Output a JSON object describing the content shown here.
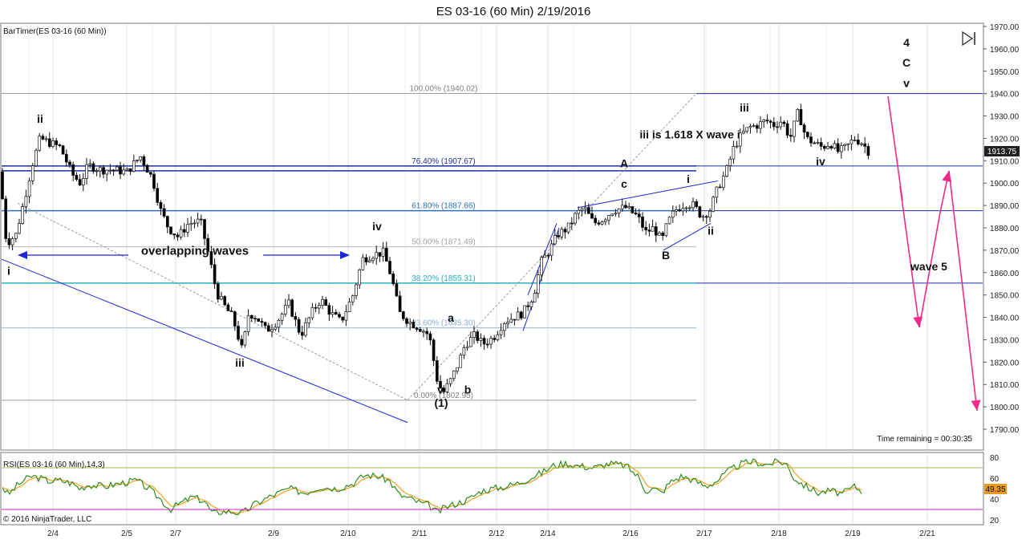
{
  "window": {
    "title": "ES 03-16 (60 Min)  2/19/2016",
    "indicator_label": "BarTimer(ES 03-16 (60 Min))",
    "rsi_label": "RSI(ES 03-16 (60 Min),14,3)",
    "copyright": "© 2016 NinjaTrader, LLC",
    "time_remaining": "Time remaining = 00:30:35"
  },
  "chart_data": {
    "type": "candlestick",
    "title": "ES 03-16 (60 Min)  2/19/2016",
    "xlabel": "",
    "ylabel": "",
    "ylim": [
      1782,
      1972
    ],
    "price_ticks": [
      "1970.00",
      "1960.00",
      "1950.00",
      "1940.00",
      "1930.00",
      "1920.00",
      "1910.00",
      "1900.00",
      "1890.00",
      "1880.00",
      "1870.00",
      "1860.00",
      "1850.00",
      "1840.00",
      "1830.00",
      "1820.00",
      "1810.00",
      "1800.00",
      "1790.00"
    ],
    "x_ticks": [
      "2/4",
      "2/5",
      "2/7",
      "2/9",
      "2/10",
      "2/11",
      "2/12",
      "2/14",
      "2/16",
      "2/17",
      "2/18",
      "2/19",
      "2/21"
    ],
    "last_price": "1913.75",
    "price_path": [
      [
        0,
        1905
      ],
      [
        8,
        1873
      ],
      [
        20,
        1877
      ],
      [
        30,
        1892
      ],
      [
        40,
        1908
      ],
      [
        50,
        1920
      ],
      [
        62,
        1918
      ],
      [
        75,
        1916
      ],
      [
        90,
        1904
      ],
      [
        100,
        1900
      ],
      [
        110,
        1908
      ],
      [
        125,
        1906
      ],
      [
        140,
        1906
      ],
      [
        158,
        1905
      ],
      [
        175,
        1912
      ],
      [
        190,
        1902
      ],
      [
        200,
        1888
      ],
      [
        210,
        1880
      ],
      [
        222,
        1876
      ],
      [
        235,
        1882
      ],
      [
        250,
        1883
      ],
      [
        262,
        1865
      ],
      [
        270,
        1851
      ],
      [
        280,
        1845
      ],
      [
        290,
        1840
      ],
      [
        302,
        1825
      ],
      [
        310,
        1842
      ],
      [
        320,
        1840
      ],
      [
        332,
        1834
      ],
      [
        345,
        1838
      ],
      [
        360,
        1846
      ],
      [
        375,
        1832
      ],
      [
        390,
        1843
      ],
      [
        400,
        1848
      ],
      [
        412,
        1842
      ],
      [
        425,
        1838
      ],
      [
        440,
        1850
      ],
      [
        452,
        1866
      ],
      [
        465,
        1868
      ],
      [
        478,
        1869
      ],
      [
        488,
        1858
      ],
      [
        498,
        1842
      ],
      [
        510,
        1838
      ],
      [
        525,
        1835
      ],
      [
        535,
        1832
      ],
      [
        545,
        1812
      ],
      [
        552,
        1806
      ],
      [
        562,
        1812
      ],
      [
        572,
        1820
      ],
      [
        580,
        1828
      ],
      [
        592,
        1832
      ],
      [
        602,
        1828
      ],
      [
        615,
        1831
      ],
      [
        628,
        1838
      ],
      [
        640,
        1840
      ],
      [
        652,
        1842
      ],
      [
        665,
        1850
      ],
      [
        675,
        1865
      ],
      [
        685,
        1870
      ],
      [
        695,
        1877
      ],
      [
        708,
        1880
      ],
      [
        718,
        1886
      ],
      [
        728,
        1889
      ],
      [
        740,
        1882
      ],
      [
        752,
        1884
      ],
      [
        765,
        1888
      ],
      [
        780,
        1889
      ],
      [
        795,
        1885
      ],
      [
        805,
        1878
      ],
      [
        815,
        1880
      ],
      [
        825,
        1874
      ],
      [
        832,
        1882
      ],
      [
        842,
        1888
      ],
      [
        855,
        1891
      ],
      [
        865,
        1890
      ],
      [
        875,
        1885
      ],
      [
        885,
        1888
      ],
      [
        895,
        1898
      ],
      [
        905,
        1905
      ],
      [
        915,
        1916
      ],
      [
        925,
        1922
      ],
      [
        935,
        1925
      ],
      [
        945,
        1926
      ],
      [
        955,
        1928
      ],
      [
        965,
        1926
      ],
      [
        975,
        1928
      ],
      [
        985,
        1920
      ],
      [
        995,
        1932
      ],
      [
        1005,
        1920
      ],
      [
        1015,
        1918
      ],
      [
        1025,
        1916
      ],
      [
        1035,
        1918
      ],
      [
        1045,
        1914
      ],
      [
        1055,
        1916
      ],
      [
        1065,
        1920
      ],
      [
        1075,
        1918
      ],
      [
        1083,
        1914
      ]
    ],
    "rsi": {
      "ylim": [
        17,
        82
      ],
      "ticks": [
        80,
        60,
        40,
        20
      ],
      "upper_level": 70,
      "lower_level": 30,
      "last_value": "49.35",
      "path": [
        [
          0,
          55
        ],
        [
          10,
          44
        ],
        [
          20,
          52
        ],
        [
          30,
          58
        ],
        [
          40,
          62
        ],
        [
          50,
          60
        ],
        [
          62,
          57
        ],
        [
          75,
          58
        ],
        [
          90,
          55
        ],
        [
          100,
          50
        ],
        [
          110,
          54
        ],
        [
          130,
          52
        ],
        [
          150,
          55
        ],
        [
          170,
          58
        ],
        [
          185,
          50
        ],
        [
          200,
          40
        ],
        [
          212,
          30
        ],
        [
          225,
          36
        ],
        [
          240,
          42
        ],
        [
          255,
          38
        ],
        [
          265,
          26
        ],
        [
          275,
          28
        ],
        [
          290,
          28
        ],
        [
          302,
          26
        ],
        [
          315,
          34
        ],
        [
          330,
          40
        ],
        [
          345,
          45
        ],
        [
          360,
          50
        ],
        [
          380,
          46
        ],
        [
          400,
          52
        ],
        [
          420,
          50
        ],
        [
          440,
          55
        ],
        [
          455,
          63
        ],
        [
          470,
          62
        ],
        [
          485,
          58
        ],
        [
          498,
          44
        ],
        [
          512,
          40
        ],
        [
          525,
          36
        ],
        [
          535,
          34
        ],
        [
          545,
          27
        ],
        [
          555,
          32
        ],
        [
          570,
          36
        ],
        [
          585,
          40
        ],
        [
          600,
          48
        ],
        [
          615,
          50
        ],
        [
          630,
          52
        ],
        [
          645,
          55
        ],
        [
          660,
          60
        ],
        [
          675,
          65
        ],
        [
          690,
          72
        ],
        [
          705,
          74
        ],
        [
          720,
          72
        ],
        [
          740,
          70
        ],
        [
          760,
          74
        ],
        [
          780,
          72
        ],
        [
          795,
          62
        ],
        [
          805,
          48
        ],
        [
          815,
          50
        ],
        [
          825,
          46
        ],
        [
          835,
          56
        ],
        [
          850,
          62
        ],
        [
          865,
          58
        ],
        [
          880,
          52
        ],
        [
          895,
          58
        ],
        [
          910,
          68
        ],
        [
          925,
          74
        ],
        [
          940,
          76
        ],
        [
          955,
          73
        ],
        [
          970,
          76
        ],
        [
          980,
          74
        ],
        [
          990,
          60
        ],
        [
          1005,
          52
        ],
        [
          1020,
          46
        ],
        [
          1035,
          48
        ],
        [
          1050,
          45
        ],
        [
          1065,
          52
        ],
        [
          1075,
          47
        ]
      ]
    },
    "fib_levels": [
      {
        "label": "100.00% (1940.02)",
        "price": 1940.02,
        "color": "#808080"
      },
      {
        "label": "76.40% (1907.67)",
        "price": 1907.67,
        "color": "#1c2fa0"
      },
      {
        "label": "61.80% (1887.66)",
        "price": 1887.66,
        "color": "#2c6fb6"
      },
      {
        "label": "50.00% (1871.49)",
        "price": 1871.49,
        "color": "#a0a0a0"
      },
      {
        "label": "38.20% (1855.31)",
        "price": 1855.31,
        "color": "#2ab0c0"
      },
      {
        "label": "23.60% (1835.30)",
        "price": 1835.3,
        "color": "#8cb0d0"
      },
      {
        "label": "0.00% (1802.95)",
        "price": 1802.95,
        "color": "#808080"
      }
    ],
    "annotations": [
      {
        "text": "ii",
        "price": 1927,
        "x": 50
      },
      {
        "text": "i",
        "price": 1859,
        "x": 11
      },
      {
        "text": "overlapping waves",
        "price": 1868,
        "x": 243
      },
      {
        "text": "iii",
        "price": 1818,
        "x": 299
      },
      {
        "text": "iv",
        "price": 1879,
        "x": 470
      },
      {
        "text": "a",
        "price": 1838,
        "x": 562
      },
      {
        "text": "v",
        "price": 1806,
        "x": 549
      },
      {
        "text": "b",
        "price": 1806,
        "x": 583
      },
      {
        "text": "(1)",
        "price": 1800,
        "x": 550
      },
      {
        "text": "A",
        "price": 1907,
        "x": 778
      },
      {
        "text": "c",
        "price": 1898,
        "x": 778
      },
      {
        "text": "i",
        "price": 1900,
        "x": 858
      },
      {
        "text": "ii",
        "price": 1877,
        "x": 886
      },
      {
        "text": "B",
        "price": 1866,
        "x": 830
      },
      {
        "text": "iii is 1.618 X wave i",
        "price": 1920,
        "x": 860
      },
      {
        "text": "iii",
        "price": 1932,
        "x": 928
      },
      {
        "text": "iv",
        "price": 1908,
        "x": 1023
      },
      {
        "text": "4",
        "price": 1961,
        "x": 1130
      },
      {
        "text": "C",
        "price": 1952,
        "x": 1130
      },
      {
        "text": "v",
        "price": 1943,
        "x": 1130
      },
      {
        "text": "wave 5",
        "price": 1861,
        "x": 1158
      }
    ]
  },
  "colors": {
    "up_candle": "#ffffff",
    "down_candle": "#000000",
    "rsi_line": "#2e8b23",
    "rsi_avg": "#f0a020",
    "trend_line": "#1d25d6",
    "arrow": "#ee2a8a",
    "rsi_upper": "#9aba48",
    "rsi_lower": "#cc22cc"
  }
}
